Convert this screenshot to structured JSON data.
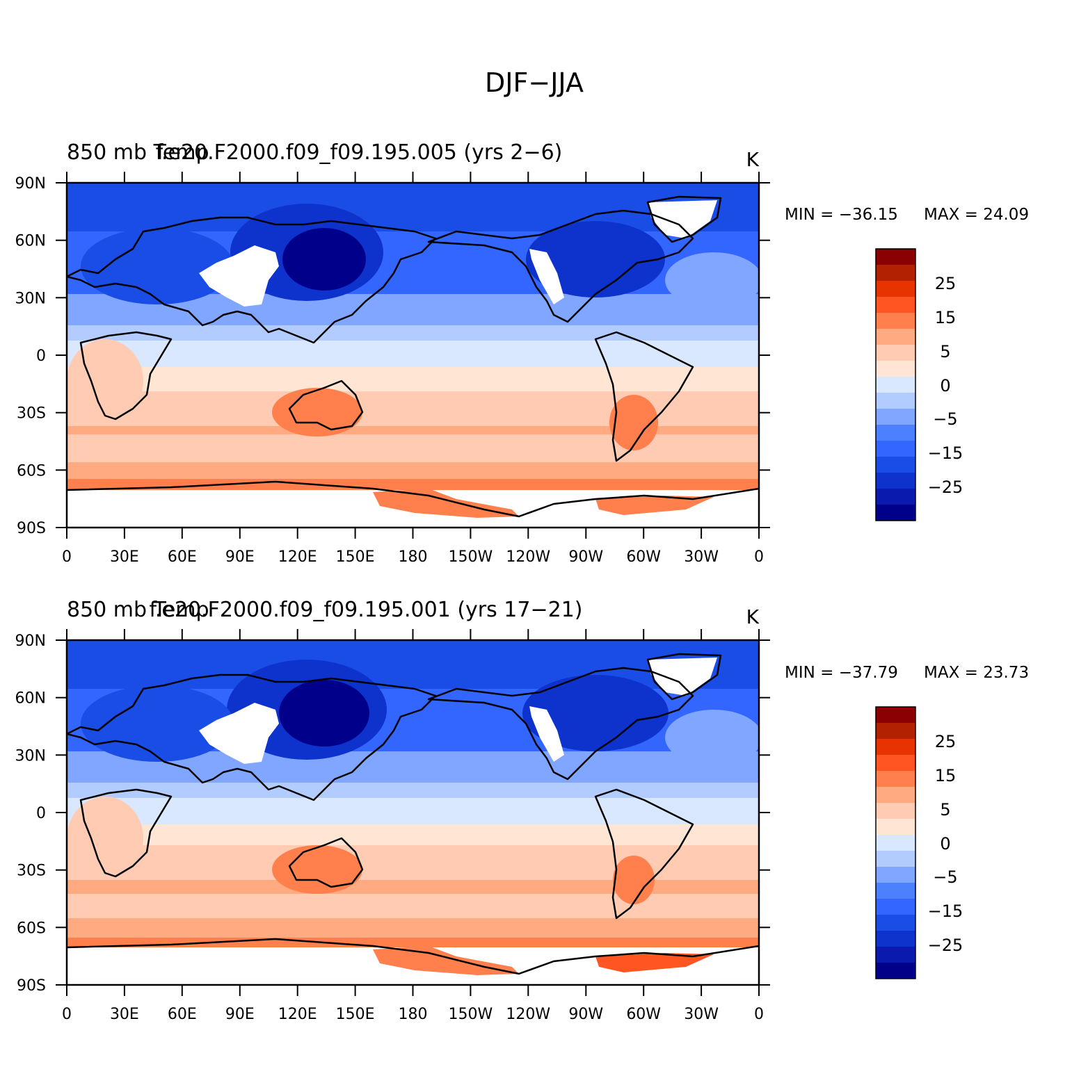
{
  "title": "DJF−JJA",
  "colorbar": {
    "colors": [
      "#00008b",
      "#0a1aad",
      "#0d33cc",
      "#1a4ce6",
      "#3366ff",
      "#4d80ff",
      "#80a6ff",
      "#b3ccff",
      "#d9e8ff",
      "#ffe6d4",
      "#ffccb3",
      "#ffaa80",
      "#ff7f4d",
      "#ff5522",
      "#e63300",
      "#b32200",
      "#8b0000"
    ],
    "labels": [
      "25",
      "15",
      "5",
      "0",
      "−5",
      "−15",
      "−25"
    ]
  },
  "axes": {
    "lat_labels": [
      "90N",
      "60N",
      "30N",
      "0",
      "30S",
      "60S",
      "90S"
    ],
    "lon_labels": [
      "0",
      "30E",
      "60E",
      "90E",
      "120E",
      "150E",
      "180",
      "150W",
      "120W",
      "90W",
      "60W",
      "30W",
      "0"
    ]
  },
  "panels": [
    {
      "title_left": "850 mb Temp",
      "title_center": "f.e20.F2000.f09_f09.195.005 (yrs 2−6)",
      "units": "K",
      "min_label": "MIN = −36.15",
      "max_label": "MAX =   24.09"
    },
    {
      "title_left": "850 mb Temp",
      "title_center": "f.e20.F2000.f09_f09.195.001 (yrs 17−21)",
      "units": "K",
      "min_label": "MIN = −37.79",
      "max_label": "MAX =   23.73"
    }
  ]
}
